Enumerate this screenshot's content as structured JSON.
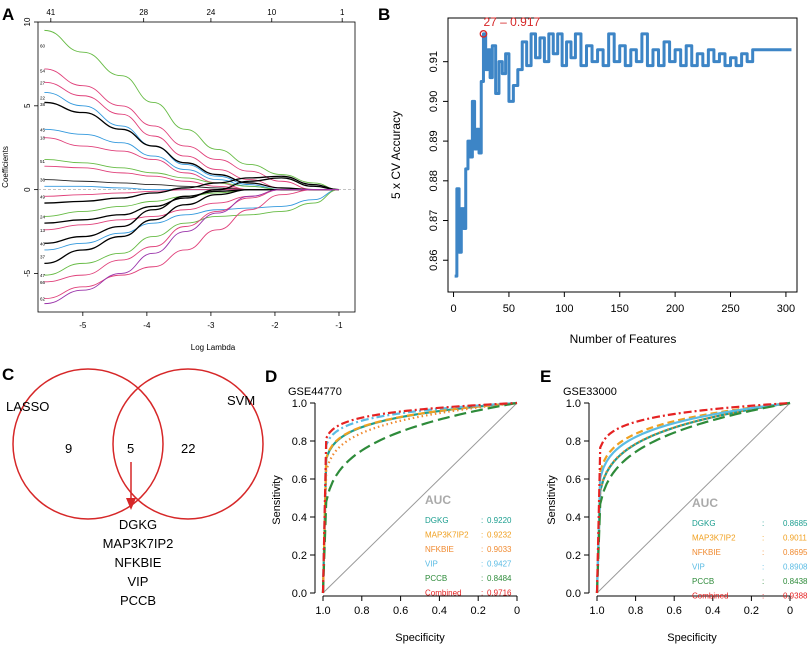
{
  "colors": {
    "axis": "#000000",
    "grid_diag": "#999999",
    "cv_line": "#3d85c6",
    "best_point": "#d62728",
    "venn": "#d62728",
    "auc_title": "#aaaaaa",
    "dgkg": "#1b9e8f",
    "map3k7ip2": "#f0a020",
    "nfkbie": "#f08a30",
    "vip": "#5bbce4",
    "pccb": "#2e8b3a",
    "combined": "#e52222"
  },
  "panels": {
    "A": {
      "letter": "A"
    },
    "B": {
      "letter": "B"
    },
    "C": {
      "letter": "C"
    },
    "D": {
      "letter": "D"
    },
    "E": {
      "letter": "E"
    }
  },
  "chart_data": [
    {
      "id": "A",
      "type": "line",
      "title": "",
      "xlabel": "Log Lambda",
      "ylabel": "Coefficients",
      "xlim": [
        -5.7,
        -0.75
      ],
      "ylim": [
        -7.3,
        10
      ],
      "x_ticks": [
        -5,
        -4,
        -3,
        -2,
        -1
      ],
      "y_ticks": [
        -5,
        0,
        5,
        10
      ],
      "top_axis": {
        "positions": [
          -5.5,
          -4.05,
          -3.0,
          -2.05,
          -0.95
        ],
        "labels": [
          "41",
          "28",
          "24",
          "10",
          "1"
        ]
      },
      "left_labels": [
        {
          "text": "60",
          "y": 8.6
        },
        {
          "text": "54",
          "y": 7.1
        },
        {
          "text": "27",
          "y": 6.4
        },
        {
          "text": "22",
          "y": 5.5
        },
        {
          "text": "38",
          "y": 5.1
        },
        {
          "text": "45",
          "y": 3.6
        },
        {
          "text": "18",
          "y": 3.1
        },
        {
          "text": "51",
          "y": 1.7
        },
        {
          "text": "36",
          "y": 0.6
        },
        {
          "text": "49",
          "y": -0.4
        },
        {
          "text": "24",
          "y": -1.6
        },
        {
          "text": "13",
          "y": -2.4
        },
        {
          "text": "40",
          "y": -3.2
        },
        {
          "text": "37",
          "y": -4.0
        },
        {
          "text": "47",
          "y": -5.1
        },
        {
          "text": "66",
          "y": -5.5
        },
        {
          "text": "62",
          "y": -6.5
        }
      ],
      "x": [
        -5.6,
        -5.0,
        -4.4,
        -3.9,
        -3.4,
        -2.9,
        -2.4,
        -1.9,
        -1.4,
        -1.0
      ],
      "series": [
        {
          "color": "#66bb44",
          "values": [
            9.5,
            8.2,
            6.8,
            5.2,
            3.6,
            2.4,
            1.5,
            0.9,
            0.4,
            0.0
          ]
        },
        {
          "color": "#e0407a",
          "values": [
            7.2,
            6.2,
            5.0,
            3.8,
            2.6,
            1.8,
            1.1,
            0.5,
            0.0,
            0.0
          ]
        },
        {
          "color": "#e0407a",
          "values": [
            6.4,
            5.6,
            4.5,
            3.2,
            2.0,
            1.2,
            0.6,
            0.1,
            0.0,
            0.0
          ]
        },
        {
          "color": "#3399dd",
          "values": [
            5.8,
            5.0,
            3.8,
            2.6,
            1.5,
            0.8,
            0.3,
            0.0,
            0.0,
            0.0
          ]
        },
        {
          "color": "#000000",
          "values": [
            5.2,
            4.6,
            3.6,
            2.6,
            1.6,
            0.9,
            0.4,
            0.1,
            0.0,
            0.0
          ]
        },
        {
          "color": "#3399dd",
          "values": [
            3.6,
            3.3,
            2.8,
            2.0,
            1.2,
            0.6,
            0.2,
            0.0,
            0.0,
            0.0
          ]
        },
        {
          "color": "#e0407a",
          "values": [
            3.1,
            2.6,
            2.3,
            1.8,
            1.0,
            0.4,
            0.0,
            0.0,
            0.0,
            0.0
          ]
        },
        {
          "color": "#66bb44",
          "values": [
            1.8,
            1.6,
            1.3,
            1.0,
            0.7,
            0.4,
            0.2,
            0.0,
            0.0,
            0.0
          ]
        },
        {
          "color": "#e0407a",
          "values": [
            1.4,
            1.3,
            1.0,
            0.8,
            0.5,
            0.2,
            0.0,
            0.0,
            0.0,
            0.0
          ]
        },
        {
          "color": "#222222",
          "values": [
            0.6,
            0.5,
            0.4,
            0.3,
            0.2,
            0.1,
            0.0,
            0.0,
            0.0,
            0.0
          ]
        },
        {
          "color": "#3399dd",
          "values": [
            0.2,
            0.2,
            0.1,
            0.0,
            0.0,
            0.0,
            0.0,
            0.0,
            0.0,
            0.0
          ]
        },
        {
          "color": "#e0407a",
          "values": [
            -0.4,
            -0.3,
            -0.2,
            -0.1,
            0.0,
            0.0,
            0.0,
            0.0,
            0.0,
            0.0
          ]
        },
        {
          "color": "#000000",
          "values": [
            -0.8,
            -0.7,
            -0.5,
            -0.2,
            0.1,
            0.4,
            0.7,
            0.8,
            0.3,
            0.0
          ]
        },
        {
          "color": "#66bb44",
          "values": [
            -1.6,
            -1.3,
            -1.0,
            -0.7,
            -0.4,
            -0.2,
            0.0,
            0.0,
            0.0,
            0.0
          ]
        },
        {
          "color": "#000000",
          "values": [
            -2.0,
            -1.8,
            -1.5,
            -1.0,
            -0.5,
            0.0,
            0.5,
            0.7,
            0.2,
            0.0
          ]
        },
        {
          "color": "#e0407a",
          "values": [
            -2.4,
            -2.1,
            -1.8,
            -1.6,
            -1.2,
            -0.8,
            -0.4,
            0.0,
            0.0,
            0.0
          ]
        },
        {
          "color": "#000000",
          "values": [
            -3.2,
            -2.8,
            -2.2,
            -1.2,
            -0.4,
            -0.1,
            0.0,
            0.0,
            0.0,
            0.0
          ]
        },
        {
          "color": "#3399dd",
          "values": [
            -3.6,
            -3.2,
            -2.6,
            -2.0,
            -1.5,
            -1.2,
            -1.1,
            -1.0,
            -0.6,
            0.0
          ]
        },
        {
          "color": "#000000",
          "values": [
            -4.4,
            -3.6,
            -2.8,
            -1.8,
            -0.9,
            -0.3,
            0.0,
            0.0,
            0.0,
            0.0
          ]
        },
        {
          "color": "#66bb44",
          "values": [
            -5.1,
            -4.4,
            -3.8,
            -2.8,
            -2.0,
            -1.6,
            -1.5,
            -1.3,
            -0.8,
            0.0
          ]
        },
        {
          "color": "#e0407a",
          "values": [
            -5.5,
            -5.1,
            -4.2,
            -3.4,
            -2.2,
            -1.3,
            -0.5,
            0.0,
            0.0,
            0.0
          ]
        },
        {
          "color": "#e0407a",
          "values": [
            -6.5,
            -5.8,
            -5.1,
            -4.6,
            -3.6,
            -2.4,
            -1.2,
            -0.3,
            0.0,
            0.0
          ]
        },
        {
          "color": "#9933aa",
          "values": [
            -6.8,
            -6.0,
            -5.0,
            -3.8,
            -2.5,
            -1.4,
            -0.4,
            0.0,
            0.0,
            0.0
          ]
        }
      ]
    },
    {
      "id": "B",
      "type": "line",
      "title": "",
      "xlabel": "Number of Features",
      "ylabel": "5 x CV Accuracy",
      "xlim": [
        -5,
        310
      ],
      "ylim": [
        0.852,
        0.921
      ],
      "x_ticks": [
        0,
        50,
        100,
        150,
        200,
        250,
        300
      ],
      "y_ticks": [
        0.86,
        0.87,
        0.88,
        0.89,
        0.9,
        0.91
      ],
      "annotation": {
        "text": "27 – 0.917",
        "x": 27,
        "y": 0.917
      },
      "points": [
        [
          1,
          0.856
        ],
        [
          3,
          0.878
        ],
        [
          5,
          0.862
        ],
        [
          7,
          0.873
        ],
        [
          9,
          0.868
        ],
        [
          11,
          0.883
        ],
        [
          13,
          0.89
        ],
        [
          15,
          0.886
        ],
        [
          17,
          0.9
        ],
        [
          19,
          0.888
        ],
        [
          21,
          0.893
        ],
        [
          23,
          0.887
        ],
        [
          25,
          0.905
        ],
        [
          27,
          0.917
        ],
        [
          29,
          0.908
        ],
        [
          31,
          0.913
        ],
        [
          33,
          0.906
        ],
        [
          35,
          0.914
        ],
        [
          38,
          0.902
        ],
        [
          41,
          0.91
        ],
        [
          44,
          0.907
        ],
        [
          47,
          0.912
        ],
        [
          50,
          0.9
        ],
        [
          54,
          0.904
        ],
        [
          58,
          0.908
        ],
        [
          62,
          0.915
        ],
        [
          66,
          0.909
        ],
        [
          70,
          0.917
        ],
        [
          74,
          0.911
        ],
        [
          78,
          0.916
        ],
        [
          82,
          0.91
        ],
        [
          86,
          0.917
        ],
        [
          90,
          0.912
        ],
        [
          94,
          0.917
        ],
        [
          98,
          0.909
        ],
        [
          102,
          0.915
        ],
        [
          106,
          0.911
        ],
        [
          110,
          0.917
        ],
        [
          115,
          0.909
        ],
        [
          120,
          0.914
        ],
        [
          125,
          0.91
        ],
        [
          130,
          0.913
        ],
        [
          135,
          0.909
        ],
        [
          140,
          0.917
        ],
        [
          145,
          0.91
        ],
        [
          150,
          0.914
        ],
        [
          155,
          0.909
        ],
        [
          160,
          0.913
        ],
        [
          165,
          0.91
        ],
        [
          170,
          0.917
        ],
        [
          175,
          0.909
        ],
        [
          180,
          0.913
        ],
        [
          185,
          0.909
        ],
        [
          190,
          0.915
        ],
        [
          195,
          0.91
        ],
        [
          200,
          0.913
        ],
        [
          205,
          0.909
        ],
        [
          210,
          0.914
        ],
        [
          215,
          0.909
        ],
        [
          220,
          0.912
        ],
        [
          225,
          0.909
        ],
        [
          230,
          0.913
        ],
        [
          235,
          0.91
        ],
        [
          240,
          0.912
        ],
        [
          245,
          0.909
        ],
        [
          250,
          0.911
        ],
        [
          255,
          0.909
        ],
        [
          260,
          0.912
        ],
        [
          265,
          0.91
        ],
        [
          270,
          0.913
        ],
        [
          280,
          0.913
        ],
        [
          290,
          0.913
        ],
        [
          300,
          0.913
        ],
        [
          305,
          0.913
        ]
      ]
    },
    {
      "id": "D",
      "type": "line",
      "title": "GSE44770",
      "xlabel": "Specificity",
      "ylabel": "Sensitivity",
      "x_ticks": [
        "1.0",
        "0.8",
        "0.6",
        "0.4",
        "0.2",
        "0"
      ],
      "y_ticks": [
        "0.0",
        "0.2",
        "0.4",
        "0.6",
        "0.8",
        "1.0"
      ],
      "legend_title": "AUC",
      "series": [
        {
          "name": "DGKG",
          "auc": "0.9220",
          "style": "solid",
          "color": "#1b9e8f"
        },
        {
          "name": "MAP3K7IP2",
          "auc": "0.9232",
          "style": "dashed",
          "color": "#f0a020"
        },
        {
          "name": "NFKBIE",
          "auc": "0.9033",
          "style": "dotted",
          "color": "#f08a30"
        },
        {
          "name": "VIP",
          "auc": "0.9427",
          "style": "dashdot",
          "color": "#5bbce4"
        },
        {
          "name": "PCCB",
          "auc": "0.8484",
          "style": "longdash",
          "color": "#2e8b3a"
        },
        {
          "name": "Combined",
          "auc": "0.9716",
          "style": "dashdot",
          "color": "#e52222"
        }
      ]
    },
    {
      "id": "E",
      "type": "line",
      "title": "GSE33000",
      "xlabel": "Specificity",
      "ylabel": "Sensitivity",
      "x_ticks": [
        "1.0",
        "0.8",
        "0.6",
        "0.4",
        "0.2",
        "0"
      ],
      "y_ticks": [
        "0.0",
        "0.2",
        "0.4",
        "0.6",
        "0.8",
        "1.0"
      ],
      "legend_title": "AUC",
      "series": [
        {
          "name": "DGKG",
          "auc": "0.8685",
          "style": "solid",
          "color": "#1b9e8f"
        },
        {
          "name": "MAP3K7IP2",
          "auc": "0.9011",
          "style": "dashed",
          "color": "#f0a020"
        },
        {
          "name": "NFKBIE",
          "auc": "0.8695",
          "style": "dotted",
          "color": "#f08a30"
        },
        {
          "name": "VIP",
          "auc": "0.8908",
          "style": "solid",
          "color": "#5bbce4"
        },
        {
          "name": "PCCB",
          "auc": "0.8438",
          "style": "longdash",
          "color": "#2e8b3a"
        },
        {
          "name": "Combined",
          "auc": "0.9388",
          "style": "dashdot",
          "color": "#e52222"
        }
      ]
    }
  ],
  "venn": {
    "left_label": "LASSO",
    "right_label": "SVM",
    "left_count": "9",
    "overlap_count": "5",
    "right_count": "22",
    "genes": [
      "DGKG",
      "MAP3K7IP2",
      "NFKBIE",
      "VIP",
      "PCCB"
    ]
  },
  "roc_sep": {
    "D": ":",
    "E": ":"
  }
}
